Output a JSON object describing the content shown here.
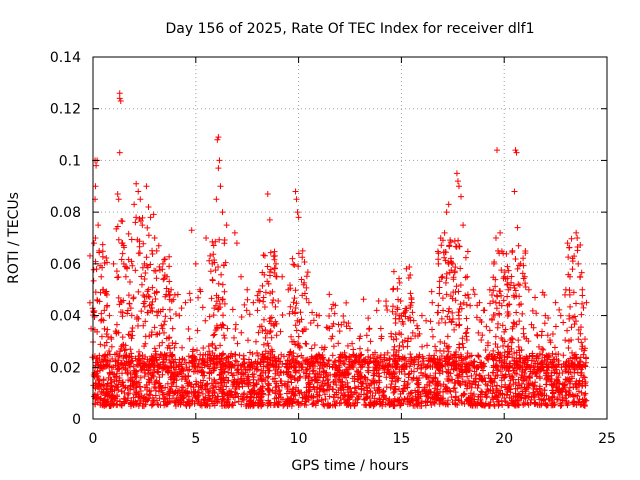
{
  "chart_data": {
    "type": "scatter",
    "title": "Day 156 of 2025, Rate Of TEC Index for receiver dlf1",
    "xlabel": "GPS time / hours",
    "ylabel": "ROTI / TECUs",
    "xlim": [
      0,
      25
    ],
    "ylim": [
      0,
      0.14
    ],
    "xticks": [
      0,
      5,
      10,
      15,
      20,
      25
    ],
    "yticks": [
      0,
      0.02,
      0.04,
      0.06,
      0.08,
      0.1,
      0.12,
      0.14
    ],
    "xtick_labels": [
      "0",
      "5",
      "10",
      "15",
      "20",
      "25"
    ],
    "ytick_labels": [
      "0",
      "0.02",
      "0.04",
      "0.06",
      "0.08",
      "0.1",
      "0.12",
      "0.14"
    ],
    "grid": true,
    "marker": "+",
    "color": "#ff0000",
    "series": [
      {
        "name": "ROTI",
        "points": [
          [
            0.1,
            0.1
          ],
          [
            0.15,
            0.098
          ],
          [
            0.2,
            0.1
          ],
          [
            0.12,
            0.09
          ],
          [
            0.1,
            0.085
          ],
          [
            0.05,
            0.068
          ],
          [
            0.25,
            0.075
          ],
          [
            0.3,
            0.065
          ],
          [
            0.4,
            0.055
          ],
          [
            0.5,
            0.05
          ],
          [
            0.55,
            0.042
          ],
          [
            0.8,
            0.04
          ],
          [
            1.0,
            0.06
          ],
          [
            1.2,
            0.087
          ],
          [
            1.25,
            0.085
          ],
          [
            1.3,
            0.124
          ],
          [
            1.3,
            0.126
          ],
          [
            1.35,
            0.123
          ],
          [
            1.3,
            0.103
          ],
          [
            1.5,
            0.06
          ],
          [
            1.6,
            0.055
          ],
          [
            1.8,
            0.053
          ],
          [
            2.0,
            0.083
          ],
          [
            2.1,
            0.091
          ],
          [
            2.2,
            0.088
          ],
          [
            2.3,
            0.085
          ],
          [
            2.4,
            0.075
          ],
          [
            2.5,
            0.06
          ],
          [
            2.6,
            0.09
          ],
          [
            2.7,
            0.082
          ],
          [
            2.8,
            0.078
          ],
          [
            3.0,
            0.07
          ],
          [
            3.1,
            0.065
          ],
          [
            3.2,
            0.067
          ],
          [
            3.4,
            0.06
          ],
          [
            3.6,
            0.055
          ],
          [
            3.8,
            0.05
          ],
          [
            4.2,
            0.04
          ],
          [
            4.5,
            0.045
          ],
          [
            4.8,
            0.073
          ],
          [
            5.0,
            0.06
          ],
          [
            5.2,
            0.05
          ],
          [
            5.5,
            0.07
          ],
          [
            5.8,
            0.06
          ],
          [
            6.0,
            0.085
          ],
          [
            6.05,
            0.108
          ],
          [
            6.1,
            0.109
          ],
          [
            6.15,
            0.1
          ],
          [
            6.1,
            0.097
          ],
          [
            6.2,
            0.09
          ],
          [
            6.3,
            0.08
          ],
          [
            6.5,
            0.075
          ],
          [
            6.9,
            0.072
          ],
          [
            7.0,
            0.068
          ],
          [
            7.2,
            0.055
          ],
          [
            7.5,
            0.05
          ],
          [
            7.8,
            0.045
          ],
          [
            8.0,
            0.042
          ],
          [
            8.3,
            0.047
          ],
          [
            8.5,
            0.087
          ],
          [
            8.6,
            0.077
          ],
          [
            8.9,
            0.06
          ],
          [
            9.2,
            0.055
          ],
          [
            9.5,
            0.05
          ],
          [
            9.7,
            0.062
          ],
          [
            9.85,
            0.088
          ],
          [
            9.9,
            0.085
          ],
          [
            9.95,
            0.08
          ],
          [
            10.0,
            0.078
          ],
          [
            10.2,
            0.065
          ],
          [
            10.5,
            0.045
          ],
          [
            11.0,
            0.04
          ],
          [
            11.5,
            0.035
          ],
          [
            12.0,
            0.034
          ],
          [
            12.5,
            0.035
          ],
          [
            13.0,
            0.032
          ],
          [
            13.5,
            0.03
          ],
          [
            14.0,
            0.035
          ],
          [
            14.5,
            0.033
          ],
          [
            14.8,
            0.043
          ],
          [
            15.0,
            0.04
          ],
          [
            15.5,
            0.045
          ],
          [
            15.8,
            0.035
          ],
          [
            16.0,
            0.04
          ],
          [
            16.2,
            0.038
          ],
          [
            16.5,
            0.045
          ],
          [
            16.8,
            0.06
          ],
          [
            17.0,
            0.055
          ],
          [
            17.1,
            0.072
          ],
          [
            17.2,
            0.08
          ],
          [
            17.3,
            0.083
          ],
          [
            17.5,
            0.06
          ],
          [
            17.7,
            0.095
          ],
          [
            17.75,
            0.092
          ],
          [
            17.8,
            0.09
          ],
          [
            17.9,
            0.086
          ],
          [
            18.0,
            0.075
          ],
          [
            18.2,
            0.055
          ],
          [
            18.5,
            0.05
          ],
          [
            18.8,
            0.045
          ],
          [
            19.0,
            0.042
          ],
          [
            19.3,
            0.05
          ],
          [
            19.5,
            0.06
          ],
          [
            19.6,
            0.07
          ],
          [
            19.65,
            0.104
          ],
          [
            19.7,
            0.065
          ],
          [
            19.8,
            0.072
          ],
          [
            20.0,
            0.055
          ],
          [
            20.2,
            0.05
          ],
          [
            20.4,
            0.065
          ],
          [
            20.5,
            0.088
          ],
          [
            20.55,
            0.104
          ],
          [
            20.6,
            0.103
          ],
          [
            20.65,
            0.074
          ],
          [
            20.7,
            0.067
          ],
          [
            20.8,
            0.06
          ],
          [
            21.0,
            0.055
          ],
          [
            21.2,
            0.05
          ],
          [
            21.5,
            0.047
          ],
          [
            22.0,
            0.04
          ],
          [
            22.5,
            0.045
          ],
          [
            23.0,
            0.05
          ],
          [
            23.2,
            0.055
          ],
          [
            23.4,
            0.063
          ],
          [
            23.5,
            0.072
          ],
          [
            23.55,
            0.07
          ],
          [
            23.6,
            0.06
          ],
          [
            23.7,
            0.055
          ],
          [
            23.8,
            0.05
          ],
          [
            24.0,
            0.045
          ]
        ]
      }
    ],
    "dense_band": {
      "description_values": "bulk of samples",
      "x_range": [
        0,
        24
      ],
      "y_range": [
        0.005,
        0.025
      ]
    }
  }
}
